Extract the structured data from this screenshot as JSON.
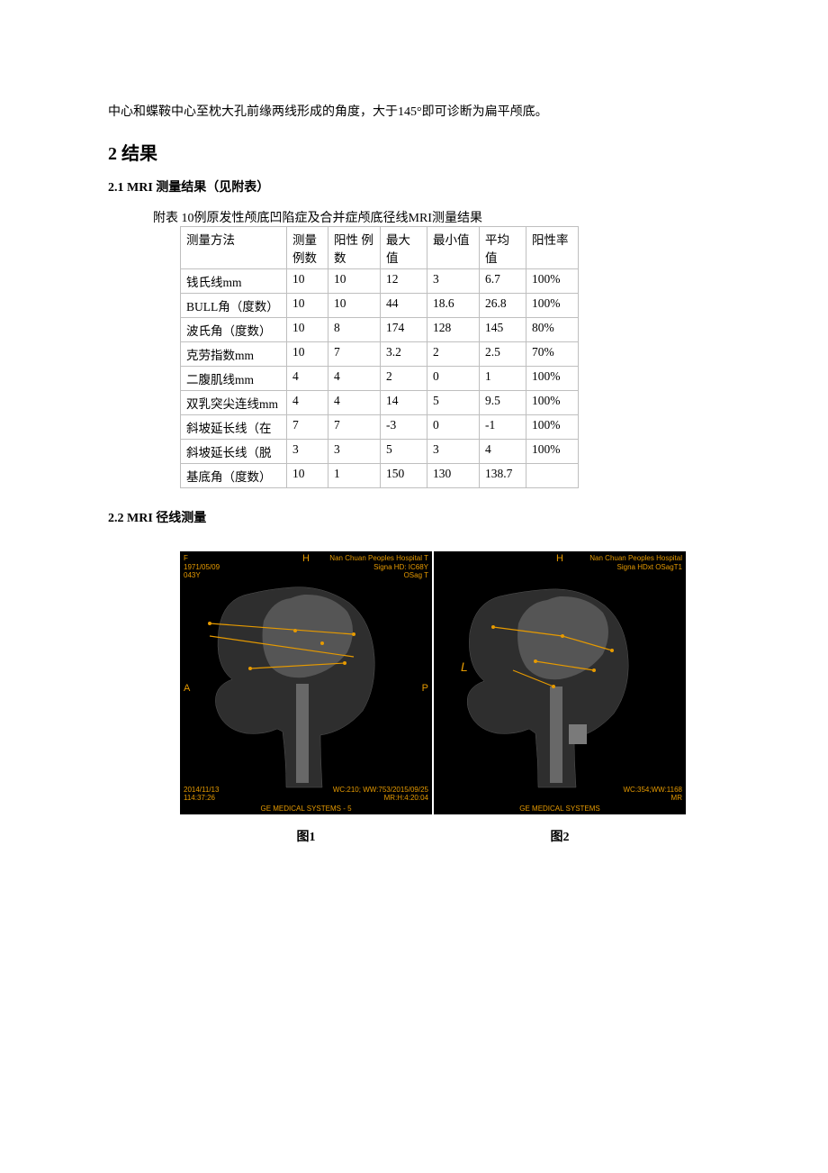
{
  "intro": "中心和蝶鞍中心至枕大孔前缘两线形成的角度，大于145°即可诊断为扁平颅底。",
  "h2": "2 结果",
  "section21": "2.1 MRI 测量结果（见附表）",
  "tableCaption": "附表  10例原发性颅底凹陷症及合并症颅底径线MRI测量结果",
  "table": {
    "columns": [
      "测量方法",
      "测量例数",
      "阳性 例数",
      "最大值",
      "最小值",
      "平均值",
      "阳性率"
    ],
    "rows": [
      [
        "钱氏线mm",
        "10",
        "10",
        "12",
        "3",
        "6.7",
        "100%"
      ],
      [
        "BULL角（度数）",
        "10",
        "10",
        "44",
        "18.6",
        "26.8",
        "100%"
      ],
      [
        "波氏角（度数）",
        "10",
        "8",
        "174",
        "128",
        "145",
        "80%"
      ],
      [
        "克劳指数mm",
        "10",
        "7",
        "3.2",
        "2",
        "2.5",
        "70%"
      ],
      [
        "二腹肌线mm",
        "4",
        "4",
        "2",
        "0",
        "1",
        "100%"
      ],
      [
        "双乳突尖连线mm",
        "4",
        "4",
        "14",
        "5",
        "9.5",
        "100%"
      ],
      [
        "斜坡延长线（在",
        "7",
        "7",
        "-3",
        "0",
        "-1",
        "100%"
      ],
      [
        "斜坡延长线（脱",
        "3",
        "3",
        "5",
        "3",
        "4",
        "100%"
      ],
      [
        "基底角（度数）",
        "10",
        "1",
        "150",
        "130",
        "138.7",
        ""
      ]
    ],
    "border_color": "#bfbfbf",
    "font_size": 13.5
  },
  "section22": "2.2 MRI 径线测量",
  "figures": {
    "panel1": {
      "tl": "F\n1971/05/09\n043Y",
      "tr": "Nan Chuan Peoples Hospital T\nSigna HD: IC68Y\nOSag T",
      "bl": "2014/11/13\n114:37:26",
      "br": "WC:210; WW:753/2015/09/25\nMR:H:4:20:04",
      "footer": "GE MEDICAL SYSTEMS - 5",
      "top_letter": "H",
      "left_letter": "A",
      "right_letter": "P",
      "caption": "图1"
    },
    "panel2": {
      "tl": "",
      "tr": "Nan Chuan Peoples Hospital\nSigna HDxt OSagT1",
      "bl": "",
      "br": "WC:354;WW:1168\nMR",
      "footer": "GE MEDICAL SYSTEMS",
      "top_letter": "H",
      "left_letter": "",
      "right_letter": "",
      "l_marker": "L",
      "caption": "图2"
    },
    "annotation_color": "#e69a00",
    "scan_grey": "#3a3a3a",
    "scan_light": "#6b6b6b"
  }
}
